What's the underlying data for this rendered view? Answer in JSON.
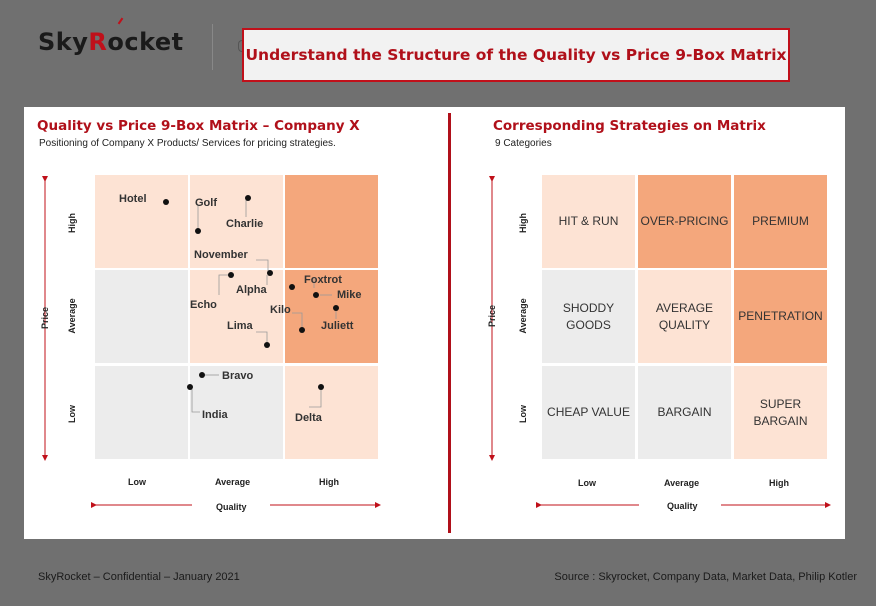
{
  "header": {
    "logo_part1": "Sky",
    "logo_r": "R",
    "logo_part2": "ocket",
    "title": "Understand the Structure of the Quality vs Price 9-Box Matrix"
  },
  "left": {
    "title": "Quality vs Price 9-Box Matrix – Company X",
    "subtitle": "Positioning of Company X Products/ Services for pricing strategies.",
    "y_axis": "Price",
    "x_axis": "Quality",
    "y_levels": [
      "High",
      "Average",
      "Low"
    ],
    "x_levels": [
      "Low",
      "Average",
      "High"
    ],
    "products": [
      "Hotel",
      "Golf",
      "Charlie",
      "November",
      "Alpha",
      "Echo",
      "Lima",
      "Foxtrot",
      "Mike",
      "Kilo",
      "Juliett",
      "Bravo",
      "India",
      "Delta"
    ]
  },
  "right": {
    "title": "Corresponding Strategies on Matrix",
    "subtitle": "9 Categories",
    "y_axis": "Price",
    "x_axis": "Quality",
    "y_levels": [
      "High",
      "Average",
      "Low"
    ],
    "x_levels": [
      "Low",
      "Average",
      "High"
    ],
    "strategies": [
      [
        "HIT & RUN",
        "OVER-PRICING",
        "PREMIUM"
      ],
      [
        "SHODDY\nGOODS",
        "AVERAGE\nQUALITY",
        "PENETRATION"
      ],
      [
        "CHEAP VALUE",
        "BARGAIN",
        "SUPER\nBARGAIN"
      ]
    ]
  },
  "colors": {
    "brand_red": "#c0101a",
    "cell_gray": "#ececec",
    "cell_light": "#fde3d4",
    "cell_orange": "#f4a77c"
  },
  "footer": {
    "left": "SkyRocket – Confidential – January 2021",
    "right": "Source : Skyrocket, Company Data, Market Data, Philip Kotler"
  }
}
